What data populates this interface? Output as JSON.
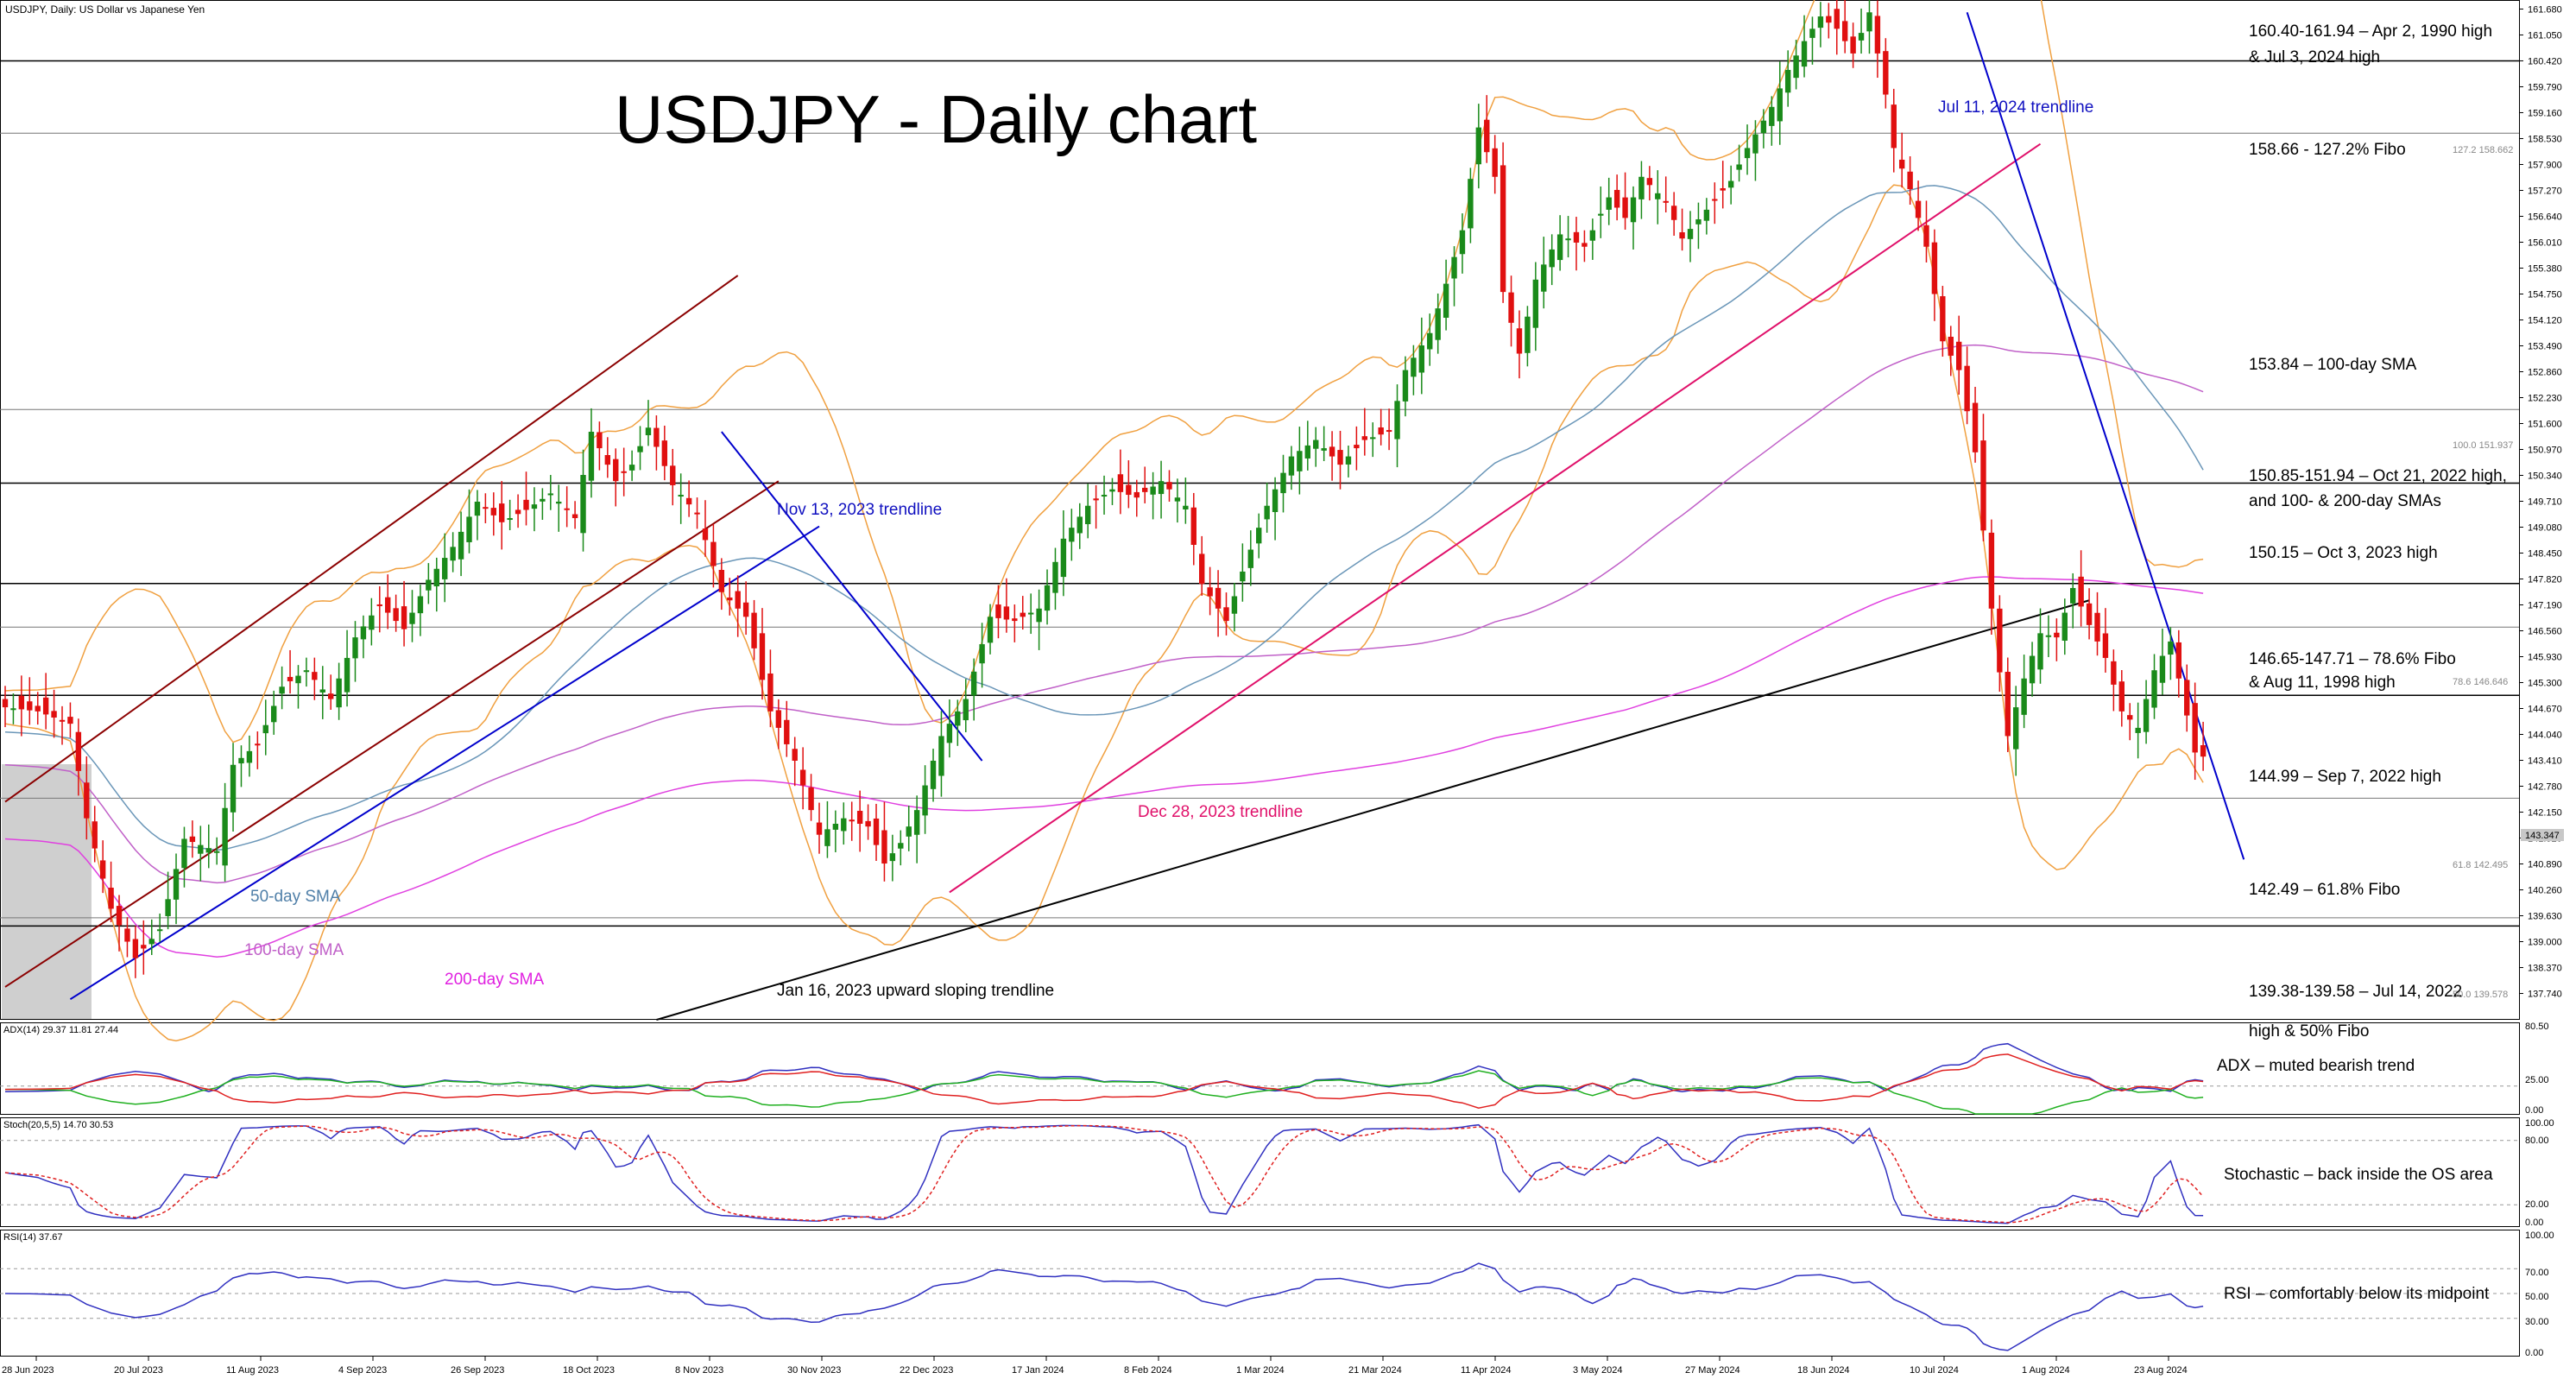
{
  "chart_data": {
    "type": "candlestick",
    "symbol_header": "USDJPY, Daily:  US Dollar vs Japanese Yen",
    "title": "USDJPY - Daily chart",
    "price_axis": {
      "min": 137.1,
      "max": 161.9,
      "ticks": [
        "161.680",
        "161.050",
        "160.420",
        "159.790",
        "159.160",
        "158.530",
        "157.900",
        "157.270",
        "156.640",
        "156.010",
        "155.380",
        "154.750",
        "154.120",
        "153.490",
        "152.860",
        "152.230",
        "151.600",
        "150.970",
        "150.340",
        "149.710",
        "149.080",
        "148.450",
        "147.820",
        "147.190",
        "146.560",
        "145.930",
        "145.300",
        "144.670",
        "144.040",
        "143.410",
        "142.780",
        "142.150",
        "141.520",
        "140.890",
        "140.260",
        "139.630",
        "139.000",
        "138.370",
        "137.740"
      ]
    },
    "date_labels": [
      "28 Jun 2023",
      "20 Jul 2023",
      "11 Aug 2023",
      "4 Sep 2023",
      "26 Sep 2023",
      "18 Oct 2023",
      "8 Nov 2023",
      "30 Nov 2023",
      "22 Dec 2023",
      "17 Jan 2024",
      "8 Feb 2024",
      "1 Mar 2024",
      "21 Mar 2024",
      "11 Apr 2024",
      "3 May 2024",
      "27 May 2024",
      "18 Jun 2024",
      "10 Jul 2024",
      "1 Aug 2024",
      "23 Aug 2024"
    ],
    "price_path": [
      [
        0,
        144.7
      ],
      [
        4,
        144.6
      ],
      [
        8,
        144.3
      ],
      [
        10,
        142.0
      ],
      [
        13,
        139.8
      ],
      [
        16,
        138.6
      ],
      [
        19,
        139.3
      ],
      [
        22,
        141.5
      ],
      [
        26,
        141.2
      ],
      [
        28,
        143.3
      ],
      [
        31,
        143.8
      ],
      [
        34,
        145.2
      ],
      [
        37,
        145.6
      ],
      [
        40,
        144.9
      ],
      [
        43,
        146.4
      ],
      [
        46,
        147.2
      ],
      [
        49,
        146.6
      ],
      [
        52,
        147.8
      ],
      [
        55,
        148.6
      ],
      [
        58,
        149.7
      ],
      [
        61,
        149.2
      ],
      [
        64,
        149.5
      ],
      [
        67,
        149.9
      ],
      [
        70,
        149.3
      ],
      [
        72,
        151.4
      ],
      [
        75,
        150.2
      ],
      [
        77,
        150.6
      ],
      [
        79,
        151.5
      ],
      [
        82,
        150.1
      ],
      [
        85,
        149.4
      ],
      [
        88,
        147.5
      ],
      [
        91,
        146.9
      ],
      [
        94,
        144.6
      ],
      [
        97,
        143.4
      ],
      [
        100,
        141.6
      ],
      [
        103,
        142.0
      ],
      [
        106,
        141.8
      ],
      [
        108,
        140.9
      ],
      [
        110,
        141.4
      ],
      [
        112,
        142.2
      ],
      [
        115,
        144.0
      ],
      [
        118,
        144.9
      ],
      [
        121,
        146.9
      ],
      [
        124,
        146.8
      ],
      [
        127,
        147.1
      ],
      [
        130,
        148.8
      ],
      [
        133,
        149.6
      ],
      [
        136,
        150.0
      ],
      [
        139,
        149.8
      ],
      [
        142,
        150.2
      ],
      [
        145,
        149.6
      ],
      [
        147,
        147.7
      ],
      [
        150,
        146.8
      ],
      [
        152,
        148.0
      ],
      [
        155,
        149.6
      ],
      [
        158,
        150.8
      ],
      [
        161,
        151.2
      ],
      [
        164,
        150.6
      ],
      [
        167,
        151.2
      ],
      [
        170,
        151.4
      ],
      [
        172,
        152.9
      ],
      [
        175,
        153.8
      ],
      [
        177,
        155.0
      ],
      [
        179,
        156.3
      ],
      [
        181,
        158.8
      ],
      [
        183,
        157.6
      ],
      [
        184,
        154.8
      ],
      [
        186,
        153.3
      ],
      [
        188,
        155.1
      ],
      [
        191,
        156.2
      ],
      [
        194,
        155.9
      ],
      [
        197,
        157.1
      ],
      [
        199,
        156.6
      ],
      [
        201,
        157.6
      ],
      [
        204,
        157.0
      ],
      [
        206,
        156.1
      ],
      [
        209,
        156.8
      ],
      [
        212,
        157.5
      ],
      [
        214,
        158.3
      ],
      [
        217,
        159.3
      ],
      [
        219,
        160.2
      ],
      [
        221,
        160.9
      ],
      [
        223,
        161.5
      ],
      [
        225,
        161.2
      ],
      [
        227,
        160.6
      ],
      [
        229,
        161.6
      ],
      [
        231,
        159.6
      ],
      [
        232,
        158.3
      ],
      [
        234,
        157.3
      ],
      [
        236,
        155.9
      ],
      [
        238,
        153.6
      ],
      [
        240,
        152.9
      ],
      [
        242,
        150.9
      ],
      [
        244,
        147.1
      ],
      [
        246,
        144.0
      ],
      [
        248,
        145.4
      ],
      [
        250,
        146.5
      ],
      [
        252,
        146.4
      ],
      [
        254,
        147.6
      ],
      [
        256,
        146.7
      ],
      [
        258,
        145.9
      ],
      [
        260,
        144.6
      ],
      [
        262,
        144.2
      ],
      [
        264,
        145.6
      ],
      [
        266,
        146.3
      ],
      [
        268,
        144.5
      ],
      [
        269,
        143.6
      ],
      [
        270,
        143.5
      ]
    ],
    "annotations": {
      "levels": [
        {
          "price": 160.42,
          "label_lines": [
            "160.40-161.94 – Apr 2, 1990 high",
            "& Jul 3, 2024 high"
          ]
        },
        {
          "price": 158.66,
          "label_lines": [
            "158.66 - 127.2% Fibo"
          ],
          "fib_tag": "127.2 158.662"
        },
        {
          "price": 151.94,
          "label_lines": [
            "150.85-151.94 – Oct 21, 2022 high,",
            "and 100- & 200-day SMAs"
          ],
          "fib_tag": "100.0 151.937"
        },
        {
          "price": 150.15,
          "label_lines": [
            "150.15 – Oct 3, 2023 high"
          ]
        },
        {
          "price": 147.71,
          "label_lines": [
            "146.65-147.71 – 78.6% Fibo",
            "& Aug 11, 1998 high"
          ]
        },
        {
          "price": 146.65,
          "label_lines": [],
          "fib_tag": "78.6 146.646"
        },
        {
          "price": 144.99,
          "label_lines": [
            "144.99 – Sep 7, 2022 high"
          ]
        },
        {
          "price": 142.49,
          "label_lines": [
            "142.49 – 61.8% Fibo"
          ],
          "fib_tag": "61.8 142.495"
        },
        {
          "price": 139.58,
          "label_lines": [
            "139.38-139.58 – Jul 14, 2022"
          ],
          "fib_tag": "50.0 139.578"
        },
        {
          "price": 139.38,
          "label_lines": [
            "high & 50% Fibo"
          ]
        }
      ],
      "current_price": "143.347",
      "trendline_labels": [
        "Jul 11, 2024 trendline",
        "Nov 13, 2023 trendline",
        "Dec 28, 2023 trendline",
        "Jan 16, 2023 upward sloping trendline"
      ],
      "ma_labels": [
        "50-day SMA",
        "100-day SMA",
        "200-day SMA"
      ],
      "sma_note": "153.84 – 100-day SMA"
    },
    "indicators": [
      {
        "name": "ADX",
        "header": "ADX(14) 29.37 11.81 27.44",
        "scale": [
          "80.50",
          "25.00",
          "0.00"
        ],
        "comment": "ADX – muted bearish trend"
      },
      {
        "name": "Stochastic",
        "header": "Stoch(20,5,5) 14.70 30.53",
        "scale": [
          "100.00",
          "80.00",
          "20.00",
          "0.00"
        ],
        "comment": "Stochastic – back inside the OS area"
      },
      {
        "name": "RSI",
        "header": "RSI(14) 37.67",
        "scale": [
          "100.00",
          "70.00",
          "50.00",
          "30.00",
          "0.00"
        ],
        "comment": "RSI – comfortably below its midpoint"
      }
    ],
    "colors": {
      "up_candle": "#1a8a1a",
      "down_candle": "#e01010",
      "sma50": "#6a96b8",
      "sma100": "#c060c8",
      "sma200": "#e040e0",
      "bollinger": "#f0a040",
      "channel": "#8b0000",
      "blue_trend": "#0000cc",
      "pink_trend": "#e0106a",
      "black_trend": "#000000"
    }
  }
}
